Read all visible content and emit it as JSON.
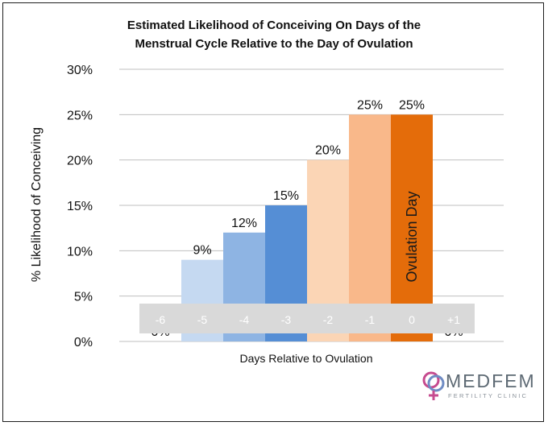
{
  "chart_data": {
    "type": "bar",
    "title_lines": [
      "Estimated Likelihood of Conceiving On Days of the",
      "Menstrual Cycle Relative to the Day of Ovulation"
    ],
    "xlabel": "Days Relative to Ovulation",
    "ylabel": "% Likelihood of Conceiving",
    "categories": [
      "-6",
      "-5",
      "-4",
      "-3",
      "-2",
      "-1",
      "0",
      "+1"
    ],
    "values": [
      0,
      9,
      12,
      15,
      20,
      25,
      25,
      0
    ],
    "data_labels": [
      "0%",
      "9%",
      "12%",
      "15%",
      "20%",
      "25%",
      "25%",
      "0%"
    ],
    "bar_colors": [
      "#c5d9f1",
      "#c5d9f1",
      "#8eb4e3",
      "#558ed5",
      "#fbd5b5",
      "#f9b88a",
      "#e46c0a",
      "#ffffff"
    ],
    "ylim": [
      0,
      30
    ],
    "yticks": [
      0,
      5,
      10,
      15,
      20,
      25,
      30
    ],
    "ytick_labels": [
      "0%",
      "5%",
      "10%",
      "15%",
      "20%",
      "25%",
      "30%"
    ],
    "annotation": "Ovulation Day",
    "grid": "horizontal"
  },
  "logo": {
    "name": "MEDFEM",
    "tagline": "FERTILITY CLINIC"
  }
}
